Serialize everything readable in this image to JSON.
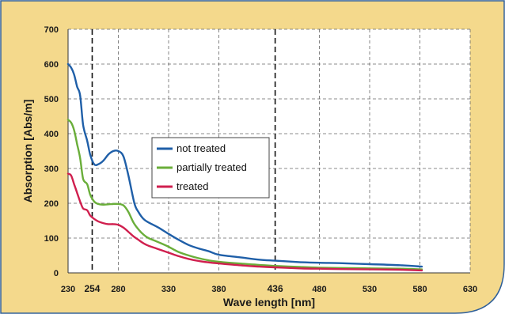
{
  "chart_data": {
    "type": "line",
    "xlabel": "Wave length [nm]",
    "ylabel": "Absorption [Abs/m]",
    "xlim": [
      230,
      630
    ],
    "ylim": [
      0,
      700
    ],
    "x_ticks": [
      230,
      254,
      280,
      330,
      380,
      436,
      480,
      530,
      580,
      630
    ],
    "x_ticks_emphasized": [
      254,
      436
    ],
    "y_ticks": [
      0,
      100,
      200,
      300,
      400,
      500,
      600,
      700
    ],
    "reference_lines_x": [
      254,
      436
    ],
    "grid": true,
    "legend_position": "center",
    "series": [
      {
        "name": "not treated",
        "color": "#1f5fa8",
        "points": [
          [
            230,
            600
          ],
          [
            233,
            590
          ],
          [
            236,
            570
          ],
          [
            239,
            535
          ],
          [
            242,
            510
          ],
          [
            245,
            425
          ],
          [
            249,
            380
          ],
          [
            252,
            340
          ],
          [
            256,
            312
          ],
          [
            260,
            312
          ],
          [
            265,
            322
          ],
          [
            270,
            340
          ],
          [
            275,
            350
          ],
          [
            280,
            350
          ],
          [
            285,
            335
          ],
          [
            290,
            280
          ],
          [
            296,
            200
          ],
          [
            300,
            175
          ],
          [
            305,
            155
          ],
          [
            310,
            145
          ],
          [
            320,
            130
          ],
          [
            330,
            112
          ],
          [
            340,
            95
          ],
          [
            350,
            80
          ],
          [
            360,
            70
          ],
          [
            370,
            62
          ],
          [
            380,
            52
          ],
          [
            400,
            45
          ],
          [
            420,
            38
          ],
          [
            436,
            35
          ],
          [
            460,
            31
          ],
          [
            480,
            29
          ],
          [
            500,
            28
          ],
          [
            530,
            25
          ],
          [
            560,
            22
          ],
          [
            582,
            18
          ]
        ]
      },
      {
        "name": "partially treated",
        "color": "#6aae3a",
        "points": [
          [
            230,
            440
          ],
          [
            233,
            432
          ],
          [
            236,
            410
          ],
          [
            239,
            370
          ],
          [
            242,
            330
          ],
          [
            245,
            270
          ],
          [
            249,
            255
          ],
          [
            252,
            225
          ],
          [
            256,
            205
          ],
          [
            260,
            198
          ],
          [
            265,
            196
          ],
          [
            270,
            197
          ],
          [
            275,
            198
          ],
          [
            280,
            198
          ],
          [
            285,
            194
          ],
          [
            290,
            175
          ],
          [
            295,
            145
          ],
          [
            300,
            125
          ],
          [
            305,
            110
          ],
          [
            310,
            100
          ],
          [
            320,
            88
          ],
          [
            330,
            75
          ],
          [
            340,
            60
          ],
          [
            350,
            50
          ],
          [
            360,
            42
          ],
          [
            370,
            36
          ],
          [
            380,
            32
          ],
          [
            400,
            27
          ],
          [
            420,
            23
          ],
          [
            436,
            20
          ],
          [
            460,
            17
          ],
          [
            480,
            15
          ],
          [
            500,
            14
          ],
          [
            530,
            13
          ],
          [
            560,
            12
          ],
          [
            582,
            10
          ]
        ]
      },
      {
        "name": "treated",
        "color": "#d01f4e",
        "points": [
          [
            230,
            285
          ],
          [
            233,
            280
          ],
          [
            236,
            255
          ],
          [
            239,
            230
          ],
          [
            242,
            205
          ],
          [
            245,
            185
          ],
          [
            249,
            180
          ],
          [
            252,
            165
          ],
          [
            256,
            155
          ],
          [
            260,
            148
          ],
          [
            265,
            143
          ],
          [
            270,
            140
          ],
          [
            275,
            140
          ],
          [
            280,
            138
          ],
          [
            285,
            130
          ],
          [
            290,
            118
          ],
          [
            295,
            105
          ],
          [
            300,
            95
          ],
          [
            305,
            85
          ],
          [
            310,
            78
          ],
          [
            320,
            68
          ],
          [
            330,
            58
          ],
          [
            340,
            48
          ],
          [
            350,
            40
          ],
          [
            360,
            34
          ],
          [
            370,
            30
          ],
          [
            380,
            27
          ],
          [
            400,
            22
          ],
          [
            420,
            18
          ],
          [
            436,
            16
          ],
          [
            460,
            13
          ],
          [
            480,
            12
          ],
          [
            500,
            11
          ],
          [
            530,
            10
          ],
          [
            560,
            9
          ],
          [
            582,
            7
          ]
        ]
      }
    ]
  },
  "colors": {
    "frame_fill": "#f4d98c",
    "frame_stroke": "#2f5f99",
    "plot_background": "#ffffff",
    "grid": "#666666"
  }
}
